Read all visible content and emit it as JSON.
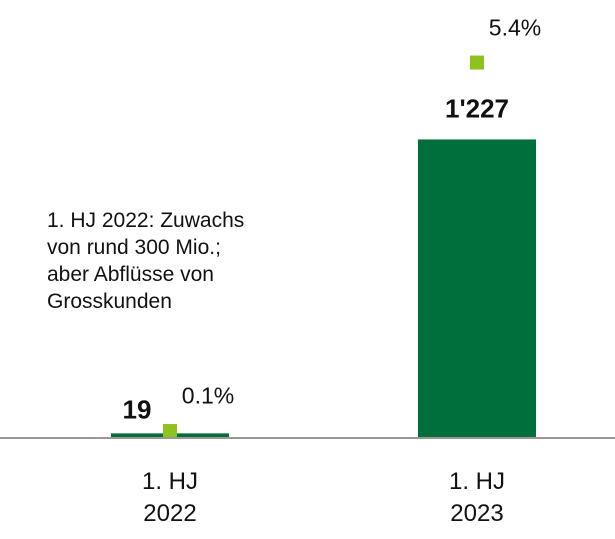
{
  "chart_data": {
    "type": "bar",
    "categories": [
      "1. HJ 2022",
      "1. HJ 2023"
    ],
    "series": [
      {
        "color": "#006f3c",
        "values": [
          19,
          1227
        ],
        "value_labels": [
          "19",
          "1'227"
        ]
      },
      {
        "color": "#8dc21f",
        "values": [
          0.1,
          5.4
        ],
        "value_labels": [
          "0.1%",
          "5.4%"
        ],
        "axis": "y2",
        "marker": "square"
      }
    ],
    "ylim": [
      0,
      1800
    ],
    "y2lim": [
      0,
      6.3
    ],
    "annotation": [
      "1. HJ 2022: Zuwachs",
      "von rund 300 Mio.;",
      "aber Abflüsse von",
      "Grosskunden"
    ]
  }
}
